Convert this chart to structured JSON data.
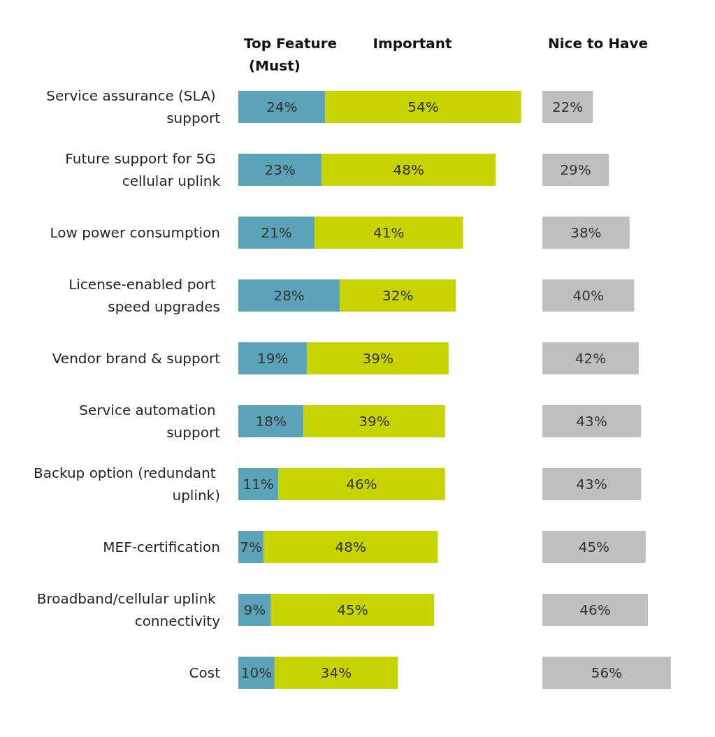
{
  "chart_data": [
    {
      "type": "bar",
      "orientation": "horizontal",
      "stacked": true,
      "categories": [
        "Service assurance (SLA) support",
        "Future support for 5G cellular uplink",
        "Low power consumption",
        "License-enabled port speed upgrades",
        "Vendor brand & support",
        "Service automation support",
        "Backup option (redundant uplink)",
        "MEF-certification",
        "Broadband/cellular uplink connectivity",
        "Cost"
      ],
      "series": [
        {
          "name": "Top Feature (Must)",
          "color": "#5ba3b9",
          "values": [
            24,
            23,
            21,
            28,
            19,
            18,
            11,
            7,
            9,
            10
          ],
          "value_labels": [
            "24%",
            "23%",
            "21%",
            "28%",
            "19%",
            "18%",
            "11%",
            "7%",
            "9%",
            "10%"
          ]
        },
        {
          "name": "Important",
          "color": "#c8d400",
          "values": [
            54,
            48,
            41,
            32,
            39,
            39,
            46,
            48,
            45,
            34
          ],
          "value_labels": [
            "54%",
            "48%",
            "41%",
            "32%",
            "39%",
            "39%",
            "46%",
            "48%",
            "45%",
            "34%"
          ]
        }
      ]
    },
    {
      "type": "bar",
      "orientation": "horizontal",
      "tick_labels": false,
      "categories": [
        "Service assurance (SLA) support",
        "Future support for 5G cellular uplink",
        "Low power consumption",
        "License-enabled port speed upgrades",
        "Vendor brand & support",
        "Service automation support",
        "Backup option (redundant uplink)",
        "MEF-certification",
        "Broadband/cellular uplink connectivity",
        "Cost"
      ],
      "series": [
        {
          "name": "Nice to Have",
          "color": "#bfbfbf",
          "values": [
            22,
            29,
            38,
            40,
            42,
            43,
            43,
            45,
            46,
            56
          ],
          "value_labels": [
            "22%",
            "29%",
            "38%",
            "40%",
            "42%",
            "43%",
            "43%",
            "45%",
            "46%",
            "56%"
          ]
        }
      ]
    }
  ]
}
